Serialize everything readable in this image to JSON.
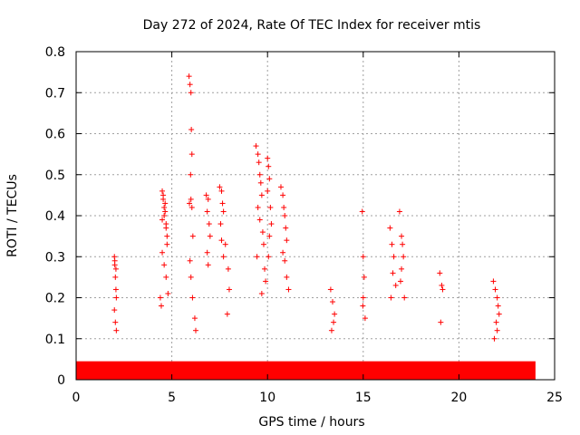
{
  "chart_data": {
    "type": "scatter",
    "title": "Day 272 of 2024, Rate Of TEC Index for receiver mtis",
    "xlabel": "GPS time / hours",
    "ylabel": "ROTI / TECUs",
    "xlim": [
      0,
      25
    ],
    "ylim": [
      0,
      0.8
    ],
    "xticks": [
      "0",
      "5",
      "10",
      "15",
      "20",
      "25"
    ],
    "yticks": [
      "0",
      "0.1",
      "0.2",
      "0.3",
      "0.4",
      "0.5",
      "0.6",
      "0.7",
      "0.8"
    ],
    "grid": true,
    "marker": "plus",
    "color": "#ff0000",
    "series": [
      {
        "name": "ROTI",
        "background_band": {
          "x_range": [
            0,
            24
          ],
          "y_range": [
            0.0,
            0.045
          ]
        },
        "x": [
          2.0,
          2.02,
          2.05,
          2.08,
          2.1,
          2.0,
          2.05,
          2.1,
          2.02,
          2.08,
          4.4,
          4.5,
          4.55,
          4.6,
          4.65,
          4.7,
          4.75,
          4.5,
          4.6,
          4.7,
          4.8,
          4.55,
          4.65,
          4.45,
          4.75,
          4.6,
          4.5,
          4.7,
          5.9,
          5.95,
          6.0,
          6.02,
          6.05,
          5.98,
          6.0,
          5.92,
          6.05,
          6.1,
          5.95,
          6.0,
          6.08,
          6.2,
          6.25,
          6.8,
          6.9,
          6.85,
          6.95,
          7.0,
          6.85,
          6.9,
          7.5,
          7.6,
          7.65,
          7.7,
          7.55,
          7.6,
          7.7,
          7.8,
          7.95,
          8.0,
          7.9,
          9.4,
          9.5,
          9.55,
          9.6,
          9.65,
          9.7,
          9.5,
          9.6,
          9.75,
          9.8,
          9.45,
          9.85,
          9.9,
          9.7,
          10.0,
          10.05,
          10.1,
          10.0,
          10.15,
          10.2,
          10.1,
          10.05,
          10.7,
          10.8,
          10.85,
          10.9,
          10.95,
          11.0,
          10.8,
          10.9,
          11.0,
          11.1,
          13.3,
          13.4,
          13.5,
          13.45,
          13.35,
          14.95,
          15.0,
          15.05,
          15.0,
          14.98,
          15.1,
          16.4,
          16.5,
          16.6,
          16.55,
          16.7,
          16.45,
          16.9,
          17.0,
          17.05,
          17.1,
          17.0,
          16.95,
          17.15,
          19.0,
          19.1,
          19.15,
          19.05,
          21.8,
          21.9,
          22.0,
          22.05,
          22.1,
          21.95,
          22.0,
          21.85
        ],
        "y": [
          0.3,
          0.28,
          0.25,
          0.22,
          0.2,
          0.17,
          0.14,
          0.12,
          0.29,
          0.27,
          0.2,
          0.46,
          0.44,
          0.42,
          0.41,
          0.38,
          0.35,
          0.31,
          0.28,
          0.25,
          0.21,
          0.45,
          0.43,
          0.18,
          0.33,
          0.4,
          0.39,
          0.37,
          0.74,
          0.72,
          0.7,
          0.61,
          0.55,
          0.5,
          0.44,
          0.43,
          0.42,
          0.35,
          0.29,
          0.25,
          0.2,
          0.15,
          0.12,
          0.45,
          0.44,
          0.41,
          0.38,
          0.35,
          0.31,
          0.28,
          0.47,
          0.46,
          0.43,
          0.41,
          0.38,
          0.34,
          0.3,
          0.33,
          0.27,
          0.22,
          0.16,
          0.57,
          0.55,
          0.53,
          0.5,
          0.48,
          0.45,
          0.42,
          0.39,
          0.36,
          0.33,
          0.3,
          0.27,
          0.24,
          0.21,
          0.54,
          0.52,
          0.49,
          0.46,
          0.42,
          0.38,
          0.35,
          0.3,
          0.47,
          0.45,
          0.42,
          0.4,
          0.37,
          0.34,
          0.31,
          0.29,
          0.25,
          0.22,
          0.22,
          0.19,
          0.16,
          0.14,
          0.12,
          0.41,
          0.3,
          0.25,
          0.2,
          0.18,
          0.15,
          0.37,
          0.33,
          0.3,
          0.26,
          0.23,
          0.2,
          0.41,
          0.35,
          0.33,
          0.3,
          0.27,
          0.24,
          0.2,
          0.26,
          0.23,
          0.22,
          0.14,
          0.24,
          0.22,
          0.2,
          0.18,
          0.16,
          0.14,
          0.12,
          0.1
        ]
      }
    ]
  }
}
